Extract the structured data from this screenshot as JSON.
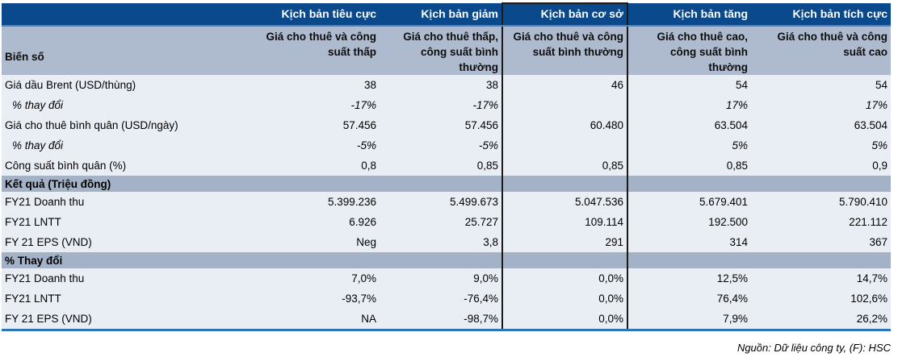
{
  "table": {
    "corner_label": "",
    "row_header_label": "Biến số",
    "scenarios": [
      {
        "name": "Kịch bản tiêu cực",
        "subtitle": "Giá cho thuê và công suất thấp",
        "highlighted": false
      },
      {
        "name": "Kịch bản giảm",
        "subtitle": "Giá cho thuê thấp, công suất bình thường",
        "highlighted": false
      },
      {
        "name": "Kịch bản cơ sở",
        "subtitle": "Giá cho thuê và công suất bình thường",
        "highlighted": true
      },
      {
        "name": "Kịch bản tăng",
        "subtitle": "Giá cho thuê cao, công suất bình thường",
        "highlighted": false
      },
      {
        "name": "Kịch bản tích cực",
        "subtitle": "Giá cho thuê và công suất cao",
        "highlighted": false
      }
    ],
    "rows": [
      {
        "type": "data",
        "label": "Giá dầu Brent (USD/thùng)",
        "values": [
          "38",
          "38",
          "46",
          "54",
          "54"
        ]
      },
      {
        "type": "italic",
        "label": "% thay đổi",
        "values": [
          "-17%",
          "-17%",
          "",
          "17%",
          "17%"
        ]
      },
      {
        "type": "data",
        "label": "Giá cho thuê bình quân (USD/ngày)",
        "values": [
          "57.456",
          "57.456",
          "60.480",
          "63.504",
          "63.504"
        ]
      },
      {
        "type": "italic",
        "label": "% thay đổi",
        "values": [
          "-5%",
          "-5%",
          "",
          "5%",
          "5%"
        ]
      },
      {
        "type": "data",
        "label": "Công suất bình quân (%)",
        "values": [
          "0,8",
          "0,85",
          "0,85",
          "0,85",
          "0,9"
        ]
      },
      {
        "type": "section",
        "label": "Kết quả (Triệu đồng)",
        "values": [
          "",
          "",
          "",
          "",
          ""
        ]
      },
      {
        "type": "data",
        "label": "FY21 Doanh thu",
        "values": [
          "5.399.236",
          "5.499.673",
          "5.047.536",
          "5.679.401",
          "5.790.410"
        ]
      },
      {
        "type": "data",
        "label": "FY21 LNTT",
        "values": [
          "6.926",
          "25.727",
          "109.114",
          "192.500",
          "221.112"
        ]
      },
      {
        "type": "data",
        "label": "FY 21 EPS (VND)",
        "values": [
          "Neg",
          "3,8",
          "291",
          "314",
          "367"
        ]
      },
      {
        "type": "section",
        "label": "% Thay đổi",
        "values": [
          "",
          "",
          "",
          "",
          ""
        ]
      },
      {
        "type": "data",
        "label": "FY21 Doanh thu",
        "values": [
          "7,0%",
          "9,0%",
          "0,0%",
          "12,5%",
          "14,7%"
        ]
      },
      {
        "type": "data",
        "label": "FY21 LNTT",
        "values": [
          "-93,7%",
          "-76,4%",
          "0,0%",
          "76,4%",
          "102,6%"
        ]
      },
      {
        "type": "data",
        "label": "FY 21 EPS (VND)",
        "values": [
          "NA",
          "-98,7%",
          "0,0%",
          "7,9%",
          "26,2%"
        ]
      }
    ]
  },
  "footer": {
    "source_note": "Nguồn: Dữ liệu công ty, (F): HSC"
  },
  "colors": {
    "header_dark": "#0A4A8C",
    "header_gray_blue": "#AEBACD",
    "section_band": "#A4B2C7",
    "row_bg": "#E9EDF4",
    "bottom_rule": "#2E75B6",
    "highlight_box_border": "#1a1a1a",
    "header_text": "#FFFFFF"
  }
}
